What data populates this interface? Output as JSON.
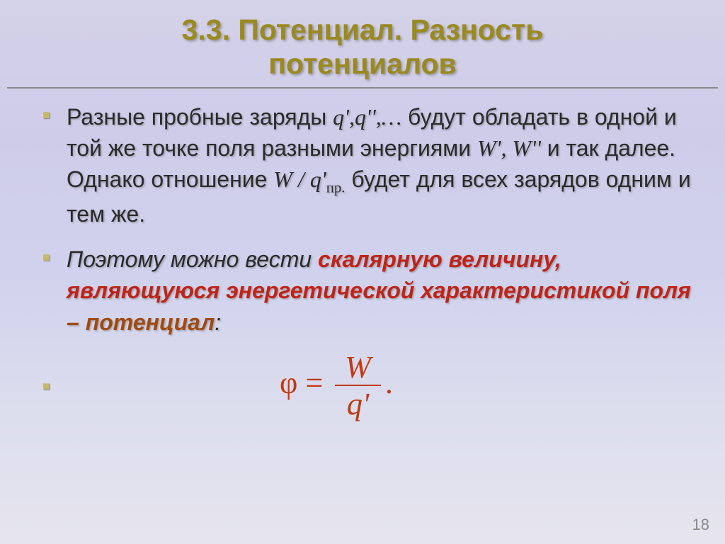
{
  "colors": {
    "title": "#9a8a1f",
    "body_text": "#2b2b2b",
    "term1": "#c02418",
    "term2": "#a14a0f",
    "formula": "#c23a12",
    "page_num": "#8a8a8a"
  },
  "title": {
    "line1": "3.3. Потенциал. Разность",
    "line2": "потенциалов"
  },
  "para1": {
    "t1": "Разные пробные заряды ",
    "q1": "q',q'',…",
    "t2": " будут обладать в одной и той же точке поля разными энергиями ",
    "w": "W', W''",
    "t3": " и так далее. Однако отношение   ",
    "ratio_lhs": "W",
    "ratio_slash": " / ",
    "ratio_q": "q'",
    "ratio_sub": "пр.",
    "t4": "   будет для всех зарядов одним и тем же."
  },
  "para2": {
    "t1": "Поэтому можно вести ",
    "term1": "скалярную величину, являющуюся энергетической характеристикой  поля ",
    "dash": "– ",
    "term2": "потенциал",
    "colon": ":"
  },
  "formula": {
    "phi": "φ",
    "eq": " = ",
    "num": "W",
    "den": "q'",
    "dot": "."
  },
  "page": "18"
}
